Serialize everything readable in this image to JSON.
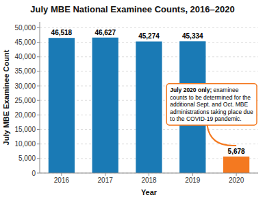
{
  "chart_data": {
    "type": "bar",
    "title": "July MBE National Examinee Counts, 2016–2020",
    "xlabel": "Year",
    "ylabel": "July MBE Examinee Count",
    "categories": [
      "2016",
      "2017",
      "2018",
      "2019",
      "2020"
    ],
    "values": [
      46518,
      46627,
      45274,
      45334,
      5678
    ],
    "value_labels": [
      "46,518",
      "46,627",
      "45,274",
      "45,334",
      "5,678"
    ],
    "colors": [
      "#1a7ab5",
      "#1a7ab5",
      "#1a7ab5",
      "#1a7ab5",
      "#f47920"
    ],
    "ylim": [
      0,
      52000
    ],
    "yticks": [
      0,
      {
        "value": 5000,
        "label": "5,000"
      },
      {
        "value": 10000,
        "label": "10,000"
      },
      {
        "value": 15000,
        "label": "15,000"
      },
      {
        "value": 20000,
        "label": "20,000"
      },
      {
        "value": 25000,
        "label": "25,000"
      },
      {
        "value": 30000,
        "label": "30,000"
      },
      {
        "value": 35000,
        "label": "35,000"
      },
      {
        "value": 40000,
        "label": "40,000"
      },
      {
        "value": 45000,
        "label": "45,000"
      },
      {
        "value": 50000,
        "label": "50,000"
      }
    ],
    "grid": true,
    "annotations": [
      {
        "bold": "July 2020 only;",
        "text": " examinee\ncounts to be determined for the\nadditional Sept. and Oct. MBE\nadministrations taking place due\nto the COVID-19 pandemic.",
        "category": "2020",
        "color": "#f47920"
      }
    ]
  }
}
